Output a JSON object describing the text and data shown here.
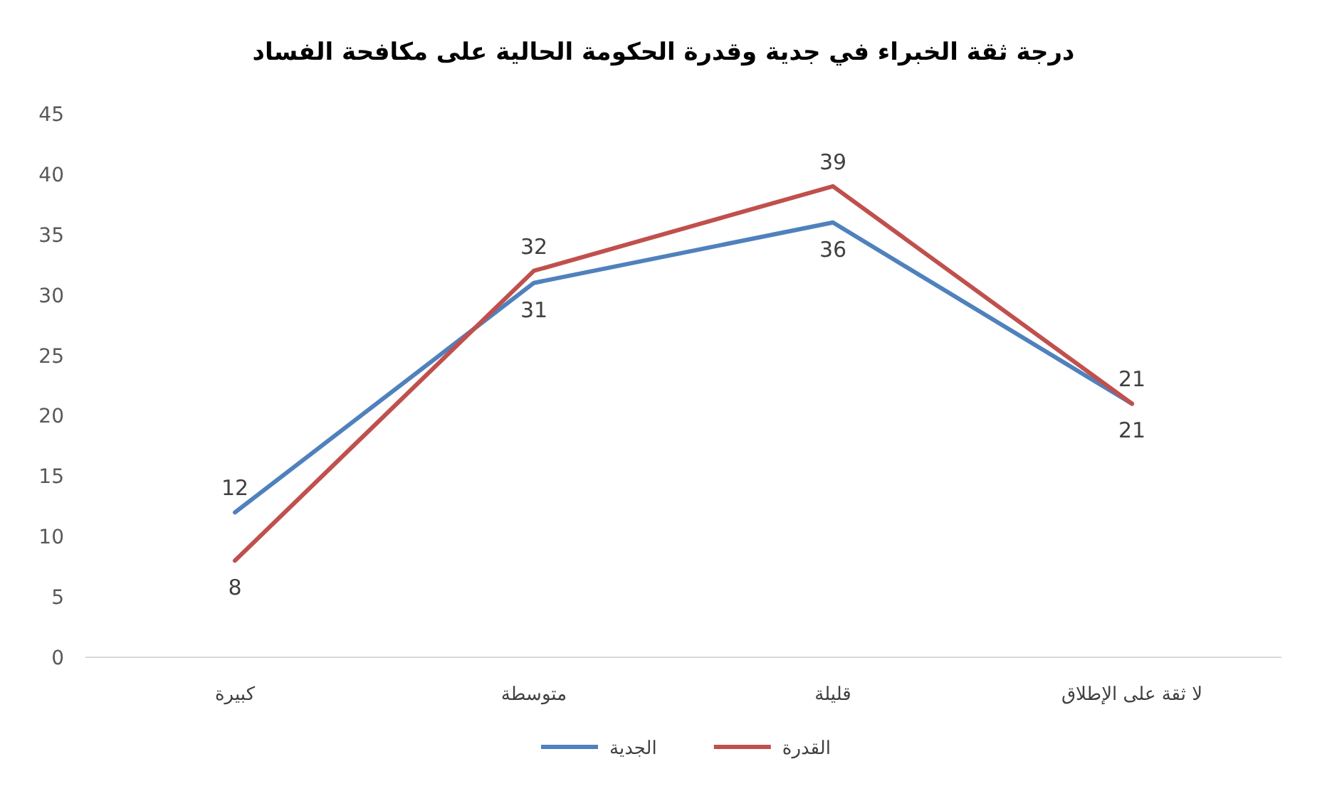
{
  "chart_data": {
    "type": "line",
    "title": "درجة ثقة الخبراء في جدية وقدرة الحكومة الحالية على مكافحة الفساد",
    "categories": [
      "كبيرة",
      "متوسطة",
      "قليلة",
      "لا ثقة على الإطلاق"
    ],
    "series": [
      {
        "name": "الجدية",
        "color": "#4f81bd",
        "values": [
          12,
          31,
          36,
          21
        ]
      },
      {
        "name": "القدرة",
        "color": "#c0504d",
        "values": [
          8,
          32,
          39,
          21
        ]
      }
    ],
    "ylim": [
      0,
      45
    ],
    "yticks": [
      0,
      5,
      10,
      15,
      20,
      25,
      30,
      35,
      40,
      45
    ],
    "grid": false,
    "legend": "bottom",
    "data_labels": true,
    "marker": "none",
    "line_style": "solid"
  }
}
